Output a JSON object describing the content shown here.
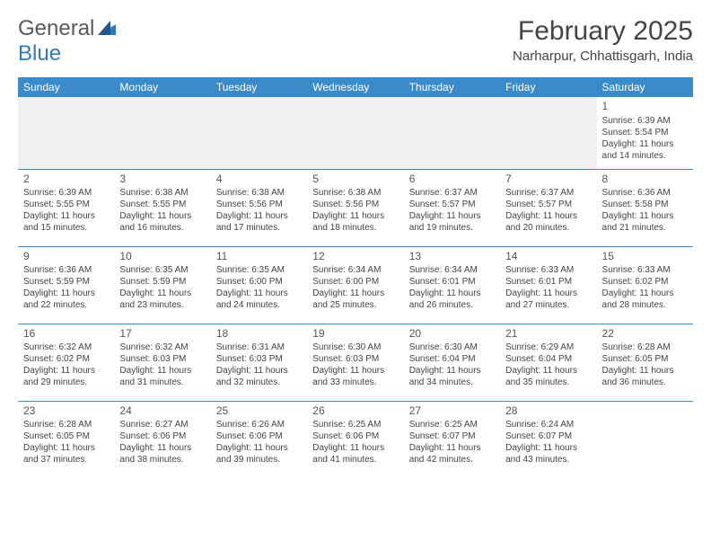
{
  "logo": {
    "text1": "General",
    "text2": "Blue"
  },
  "title": "February 2025",
  "location": "Narharpur, Chhattisgarh, India",
  "day_headers": [
    "Sunday",
    "Monday",
    "Tuesday",
    "Wednesday",
    "Thursday",
    "Friday",
    "Saturday"
  ],
  "header_bg": "#3b8bc9",
  "border_color": "#3b8bc9",
  "shade_bg": "#eef0f1",
  "weeks": [
    [
      null,
      null,
      null,
      null,
      null,
      null,
      {
        "n": "1",
        "sr": "Sunrise: 6:39 AM",
        "ss": "Sunset: 5:54 PM",
        "d1": "Daylight: 11 hours",
        "d2": "and 14 minutes."
      }
    ],
    [
      {
        "n": "2",
        "sr": "Sunrise: 6:39 AM",
        "ss": "Sunset: 5:55 PM",
        "d1": "Daylight: 11 hours",
        "d2": "and 15 minutes."
      },
      {
        "n": "3",
        "sr": "Sunrise: 6:38 AM",
        "ss": "Sunset: 5:55 PM",
        "d1": "Daylight: 11 hours",
        "d2": "and 16 minutes."
      },
      {
        "n": "4",
        "sr": "Sunrise: 6:38 AM",
        "ss": "Sunset: 5:56 PM",
        "d1": "Daylight: 11 hours",
        "d2": "and 17 minutes."
      },
      {
        "n": "5",
        "sr": "Sunrise: 6:38 AM",
        "ss": "Sunset: 5:56 PM",
        "d1": "Daylight: 11 hours",
        "d2": "and 18 minutes."
      },
      {
        "n": "6",
        "sr": "Sunrise: 6:37 AM",
        "ss": "Sunset: 5:57 PM",
        "d1": "Daylight: 11 hours",
        "d2": "and 19 minutes."
      },
      {
        "n": "7",
        "sr": "Sunrise: 6:37 AM",
        "ss": "Sunset: 5:57 PM",
        "d1": "Daylight: 11 hours",
        "d2": "and 20 minutes."
      },
      {
        "n": "8",
        "sr": "Sunrise: 6:36 AM",
        "ss": "Sunset: 5:58 PM",
        "d1": "Daylight: 11 hours",
        "d2": "and 21 minutes."
      }
    ],
    [
      {
        "n": "9",
        "sr": "Sunrise: 6:36 AM",
        "ss": "Sunset: 5:59 PM",
        "d1": "Daylight: 11 hours",
        "d2": "and 22 minutes."
      },
      {
        "n": "10",
        "sr": "Sunrise: 6:35 AM",
        "ss": "Sunset: 5:59 PM",
        "d1": "Daylight: 11 hours",
        "d2": "and 23 minutes."
      },
      {
        "n": "11",
        "sr": "Sunrise: 6:35 AM",
        "ss": "Sunset: 6:00 PM",
        "d1": "Daylight: 11 hours",
        "d2": "and 24 minutes."
      },
      {
        "n": "12",
        "sr": "Sunrise: 6:34 AM",
        "ss": "Sunset: 6:00 PM",
        "d1": "Daylight: 11 hours",
        "d2": "and 25 minutes."
      },
      {
        "n": "13",
        "sr": "Sunrise: 6:34 AM",
        "ss": "Sunset: 6:01 PM",
        "d1": "Daylight: 11 hours",
        "d2": "and 26 minutes."
      },
      {
        "n": "14",
        "sr": "Sunrise: 6:33 AM",
        "ss": "Sunset: 6:01 PM",
        "d1": "Daylight: 11 hours",
        "d2": "and 27 minutes."
      },
      {
        "n": "15",
        "sr": "Sunrise: 6:33 AM",
        "ss": "Sunset: 6:02 PM",
        "d1": "Daylight: 11 hours",
        "d2": "and 28 minutes."
      }
    ],
    [
      {
        "n": "16",
        "sr": "Sunrise: 6:32 AM",
        "ss": "Sunset: 6:02 PM",
        "d1": "Daylight: 11 hours",
        "d2": "and 29 minutes."
      },
      {
        "n": "17",
        "sr": "Sunrise: 6:32 AM",
        "ss": "Sunset: 6:03 PM",
        "d1": "Daylight: 11 hours",
        "d2": "and 31 minutes."
      },
      {
        "n": "18",
        "sr": "Sunrise: 6:31 AM",
        "ss": "Sunset: 6:03 PM",
        "d1": "Daylight: 11 hours",
        "d2": "and 32 minutes."
      },
      {
        "n": "19",
        "sr": "Sunrise: 6:30 AM",
        "ss": "Sunset: 6:03 PM",
        "d1": "Daylight: 11 hours",
        "d2": "and 33 minutes."
      },
      {
        "n": "20",
        "sr": "Sunrise: 6:30 AM",
        "ss": "Sunset: 6:04 PM",
        "d1": "Daylight: 11 hours",
        "d2": "and 34 minutes."
      },
      {
        "n": "21",
        "sr": "Sunrise: 6:29 AM",
        "ss": "Sunset: 6:04 PM",
        "d1": "Daylight: 11 hours",
        "d2": "and 35 minutes."
      },
      {
        "n": "22",
        "sr": "Sunrise: 6:28 AM",
        "ss": "Sunset: 6:05 PM",
        "d1": "Daylight: 11 hours",
        "d2": "and 36 minutes."
      }
    ],
    [
      {
        "n": "23",
        "sr": "Sunrise: 6:28 AM",
        "ss": "Sunset: 6:05 PM",
        "d1": "Daylight: 11 hours",
        "d2": "and 37 minutes."
      },
      {
        "n": "24",
        "sr": "Sunrise: 6:27 AM",
        "ss": "Sunset: 6:06 PM",
        "d1": "Daylight: 11 hours",
        "d2": "and 38 minutes."
      },
      {
        "n": "25",
        "sr": "Sunrise: 6:26 AM",
        "ss": "Sunset: 6:06 PM",
        "d1": "Daylight: 11 hours",
        "d2": "and 39 minutes."
      },
      {
        "n": "26",
        "sr": "Sunrise: 6:25 AM",
        "ss": "Sunset: 6:06 PM",
        "d1": "Daylight: 11 hours",
        "d2": "and 41 minutes."
      },
      {
        "n": "27",
        "sr": "Sunrise: 6:25 AM",
        "ss": "Sunset: 6:07 PM",
        "d1": "Daylight: 11 hours",
        "d2": "and 42 minutes."
      },
      {
        "n": "28",
        "sr": "Sunrise: 6:24 AM",
        "ss": "Sunset: 6:07 PM",
        "d1": "Daylight: 11 hours",
        "d2": "and 43 minutes."
      },
      null
    ]
  ]
}
